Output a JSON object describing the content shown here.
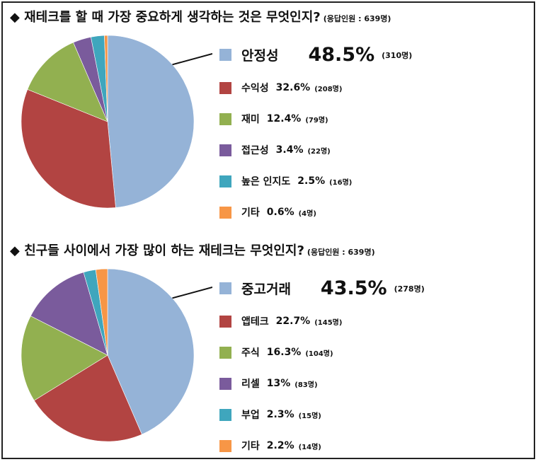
{
  "chart_data": [
    {
      "type": "pie",
      "title": "◆ 재테크를 할 때 가장 중요하게 생각하는 것은 무엇인지?",
      "subtitle": "(응답인원 : 639명)",
      "slices": [
        {
          "label": "안정성",
          "value": 48.5,
          "pct_text": "48.5%",
          "count_text": "(310명)",
          "color": "#95b3d7"
        },
        {
          "label": "수익성",
          "value": 32.6,
          "pct_text": "32.6%",
          "count_text": "(208명)",
          "color": "#b24442"
        },
        {
          "label": "재미",
          "value": 12.4,
          "pct_text": "12.4%",
          "count_text": "(79명)",
          "color": "#92b050"
        },
        {
          "label": "접근성",
          "value": 3.4,
          "pct_text": "3.4%",
          "count_text": "(22명)",
          "color": "#7a5b9c"
        },
        {
          "label": "높은 인지도",
          "value": 2.5,
          "pct_text": "2.5%",
          "count_text": "(16명)",
          "color": "#3fa6bd"
        },
        {
          "label": "기타",
          "value": 0.6,
          "pct_text": "0.6%",
          "count_text": "(4명)",
          "color": "#f79646"
        }
      ]
    },
    {
      "type": "pie",
      "title": "◆ 친구들 사이에서 가장 많이 하는 재테크는 무엇인지?",
      "subtitle": "(응답인원 : 639명)",
      "slices": [
        {
          "label": "중고거래",
          "value": 43.5,
          "pct_text": "43.5%",
          "count_text": "(278명)",
          "color": "#95b3d7"
        },
        {
          "label": "앱테크",
          "value": 22.7,
          "pct_text": "22.7%",
          "count_text": "(145명)",
          "color": "#b24442"
        },
        {
          "label": "주식",
          "value": 16.3,
          "pct_text": "16.3%",
          "count_text": "(104명)",
          "color": "#92b050"
        },
        {
          "label": "리셀",
          "value": 13,
          "pct_text": "13%",
          "count_text": "(83명)",
          "color": "#7a5b9c"
        },
        {
          "label": "부업",
          "value": 2.3,
          "pct_text": "2.3%",
          "count_text": "(15명)",
          "color": "#3fa6bd"
        },
        {
          "label": "기타",
          "value": 2.2,
          "pct_text": "2.2%",
          "count_text": "(14명)",
          "color": "#f79646"
        }
      ]
    }
  ]
}
